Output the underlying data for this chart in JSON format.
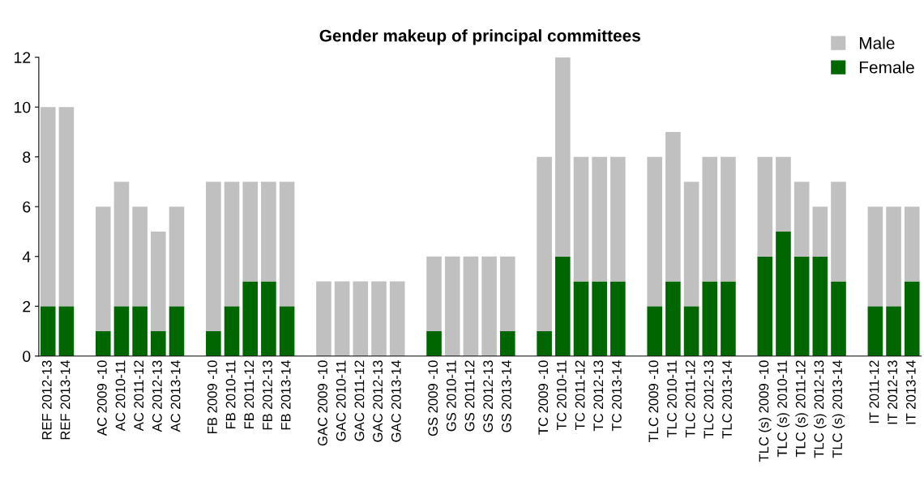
{
  "chart_data": {
    "type": "bar",
    "stacked": true,
    "title": "Gender makeup of principal committees",
    "categories": [
      "REF 2012-13",
      "REF 2013-14",
      null,
      "AC 2009 -10",
      "AC 2010-11",
      "AC 2011-12",
      "AC 2012-13",
      "AC 2013-14",
      null,
      "FB 2009 -10",
      "FB 2010-11",
      "FB 2011-12",
      "FB 2012-13",
      "FB 2013-14",
      null,
      "GAC 2009 -10",
      "GAC 2010-11",
      "GAC 2011-12",
      "GAC 2012-13",
      "GAC 2013-14",
      null,
      "GS 2009 -10",
      "GS 2010-11",
      "GS 2011-12",
      "GS 2012-13",
      "GS 2013-14",
      null,
      "TC 2009 -10",
      "TC 2010-11",
      "TC 2011-12",
      "TC 2012-13",
      "TC 2013-14",
      null,
      "TLC 2009 -10",
      "TLC 2010-11",
      "TLC 2011-12",
      "TLC 2012-13",
      "TLC 2013-14",
      null,
      "TLC (s) 2009 -10",
      "TLC (s) 2010-11",
      "TLC (s) 2011-12",
      "TLC (s) 2012-13",
      "TLC (s) 2013-14",
      null,
      "IT 2011-12",
      "IT 2012-13",
      "IT 2013-14"
    ],
    "series": [
      {
        "name": "Female",
        "color": "#006600",
        "values": [
          2,
          2,
          null,
          1,
          2,
          2,
          1,
          2,
          null,
          1,
          2,
          3,
          3,
          2,
          null,
          0,
          0,
          0,
          0,
          0,
          null,
          1,
          0,
          0,
          0,
          1,
          null,
          1,
          4,
          3,
          3,
          3,
          null,
          2,
          3,
          2,
          3,
          3,
          null,
          4,
          5,
          4,
          4,
          3,
          null,
          2,
          2,
          3
        ]
      },
      {
        "name": "Male",
        "color": "#c0c0c0",
        "values": [
          8,
          8,
          null,
          5,
          5,
          4,
          4,
          4,
          null,
          6,
          5,
          4,
          4,
          5,
          null,
          3,
          3,
          3,
          3,
          3,
          null,
          3,
          4,
          4,
          4,
          3,
          null,
          7,
          8,
          5,
          5,
          5,
          null,
          6,
          6,
          5,
          5,
          5,
          null,
          4,
          3,
          3,
          2,
          4,
          null,
          4,
          4,
          3
        ]
      }
    ],
    "ylim": [
      0,
      12
    ],
    "yticks": [
      0,
      2,
      4,
      6,
      8,
      10,
      12
    ],
    "grid": false,
    "legend": "top right"
  }
}
